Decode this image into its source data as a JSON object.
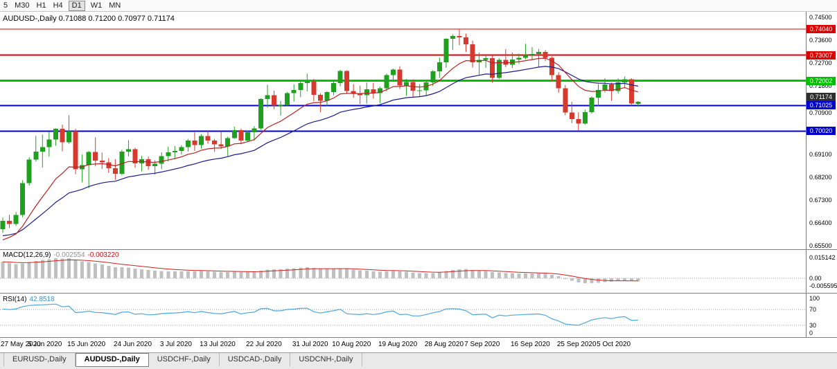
{
  "toolbar": {
    "timeframes": [
      "5",
      "M30",
      "H1",
      "H4",
      "D1",
      "W1",
      "MN"
    ],
    "active": "D1"
  },
  "quote": {
    "symbol": "AUDUSD-,Daily",
    "open": "0.71088",
    "high": "0.71200",
    "low": "0.70977",
    "close": "0.71174"
  },
  "price_axis": {
    "ticks": [
      0.745,
      0.736,
      0.727,
      0.718,
      0.709,
      0.7,
      0.691,
      0.682,
      0.673,
      0.664,
      0.655
    ],
    "current_price": {
      "value": "0.71174",
      "bg": "#2f2f2f"
    }
  },
  "hlines": [
    {
      "price": 0.7404,
      "label": "0.74040",
      "color": "#dd0000",
      "width": 1
    },
    {
      "price": 0.73007,
      "label": "0.73007",
      "color": "#dd0000",
      "width": 2
    },
    {
      "price": 0.72002,
      "label": "0.72002",
      "color": "#00c000",
      "width": 3
    },
    {
      "price": 0.71025,
      "label": "0.71025",
      "color": "#0000cc",
      "width": 2
    },
    {
      "price": 0.7002,
      "label": "0.70020",
      "color": "#0000cc",
      "width": 2
    }
  ],
  "indicators": {
    "macd": {
      "name": "MACD(12,26,9)",
      "main_value": "-0.002554",
      "signal_value": "-0.003220",
      "axis_labels": [
        "0.015142",
        "0.00",
        "-0.005595"
      ],
      "histogram_color": "#c0c0c0",
      "signal_color": "#cc2020"
    },
    "rsi": {
      "name": "RSI(14)",
      "value": "42.8518",
      "axis_labels": [
        "100",
        "70",
        "30",
        "0"
      ],
      "levels": [
        70,
        30
      ],
      "line_color": "#4da6d9"
    }
  },
  "tabs": [
    "EURUSD-,Daily",
    "AUDUSD-,Daily",
    "USDCHF-,Daily",
    "USDCAD-,Daily",
    "USDCNH-,Daily"
  ],
  "active_tab": "AUDUSD-,Daily",
  "chart_data": {
    "type": "candlestick",
    "symbol": "AUDUSD",
    "timeframe": "Daily",
    "ylim": [
      0.655,
      0.745
    ],
    "up_color": "#1fa11f",
    "down_color": "#d63a2f",
    "ma_fast_color": "#bb2222",
    "ma_slow_color": "#1a1a8c",
    "x_labels": [
      {
        "text": "27 May 2020",
        "i": 0
      },
      {
        "text": "5 Jun 2020",
        "i": 7
      },
      {
        "text": "15 Jun 2020",
        "i": 13
      },
      {
        "text": "24 Jun 2020",
        "i": 20
      },
      {
        "text": "3 Jul 2020",
        "i": 27
      },
      {
        "text": "13 Jul 2020",
        "i": 33
      },
      {
        "text": "22 Jul 2020",
        "i": 40
      },
      {
        "text": "31 Jul 2020",
        "i": 47
      },
      {
        "text": "10 Aug 2020",
        "i": 53
      },
      {
        "text": "19 Aug 2020",
        "i": 60
      },
      {
        "text": "28 Aug 2020",
        "i": 67
      },
      {
        "text": "7 Sep 2020",
        "i": 73
      },
      {
        "text": "16 Sep 2020",
        "i": 80
      },
      {
        "text": "25 Sep 2020",
        "i": 87
      },
      {
        "text": "5 Oct 2020",
        "i": 93
      }
    ],
    "ohlc": [
      [
        0.6616,
        0.6661,
        0.6601,
        0.6648
      ],
      [
        0.6648,
        0.6672,
        0.662,
        0.6636
      ],
      [
        0.6636,
        0.6683,
        0.6628,
        0.6671
      ],
      [
        0.6671,
        0.6808,
        0.6662,
        0.6797
      ],
      [
        0.6797,
        0.6899,
        0.6787,
        0.689
      ],
      [
        0.689,
        0.6983,
        0.6882,
        0.6921
      ],
      [
        0.6921,
        0.6988,
        0.6858,
        0.6939
      ],
      [
        0.6939,
        0.6998,
        0.6901,
        0.6969
      ],
      [
        0.6969,
        0.7013,
        0.6944,
        0.7011
      ],
      [
        0.7011,
        0.7027,
        0.6922,
        0.6958
      ],
      [
        0.6958,
        0.7064,
        0.6952,
        0.7001
      ],
      [
        0.7001,
        0.7011,
        0.6832,
        0.6851
      ],
      [
        0.6851,
        0.691,
        0.68,
        0.6868
      ],
      [
        0.6868,
        0.6923,
        0.6777,
        0.6919
      ],
      [
        0.6919,
        0.6977,
        0.6863,
        0.6885
      ],
      [
        0.6885,
        0.6917,
        0.6852,
        0.6879
      ],
      [
        0.6879,
        0.6895,
        0.6837,
        0.6856
      ],
      [
        0.6856,
        0.6891,
        0.681,
        0.6833
      ],
      [
        0.6833,
        0.6928,
        0.6828,
        0.6921
      ],
      [
        0.6921,
        0.6966,
        0.6902,
        0.6931
      ],
      [
        0.6931,
        0.6936,
        0.6857,
        0.6874
      ],
      [
        0.6874,
        0.6904,
        0.6843,
        0.6891
      ],
      [
        0.6891,
        0.6901,
        0.6849,
        0.6864
      ],
      [
        0.6864,
        0.6887,
        0.683,
        0.6873
      ],
      [
        0.6873,
        0.6918,
        0.6852,
        0.6903
      ],
      [
        0.6903,
        0.6941,
        0.6882,
        0.6918
      ],
      [
        0.6918,
        0.6943,
        0.689,
        0.6924
      ],
      [
        0.6924,
        0.6946,
        0.691,
        0.6938
      ],
      [
        0.6938,
        0.6971,
        0.6921,
        0.6965
      ],
      [
        0.6965,
        0.6997,
        0.6924,
        0.6947
      ],
      [
        0.6947,
        0.6989,
        0.6932,
        0.6982
      ],
      [
        0.6982,
        0.7001,
        0.6952,
        0.6964
      ],
      [
        0.6964,
        0.6971,
        0.692,
        0.6949
      ],
      [
        0.6949,
        0.7001,
        0.6932,
        0.6942
      ],
      [
        0.6942,
        0.698,
        0.6903,
        0.6974
      ],
      [
        0.6974,
        0.7019,
        0.6971,
        0.7005
      ],
      [
        0.7005,
        0.7011,
        0.695,
        0.6964
      ],
      [
        0.6964,
        0.7004,
        0.6959,
        0.6997
      ],
      [
        0.6997,
        0.7021,
        0.6965,
        0.7012
      ],
      [
        0.7012,
        0.7131,
        0.7007,
        0.7128
      ],
      [
        0.7128,
        0.7184,
        0.7094,
        0.7143
      ],
      [
        0.7143,
        0.7161,
        0.7088,
        0.7102
      ],
      [
        0.7102,
        0.7121,
        0.7063,
        0.7104
      ],
      [
        0.7104,
        0.7156,
        0.7101,
        0.7151
      ],
      [
        0.7151,
        0.7186,
        0.7118,
        0.7163
      ],
      [
        0.7163,
        0.7198,
        0.7135,
        0.7191
      ],
      [
        0.7191,
        0.7228,
        0.7158,
        0.7197
      ],
      [
        0.7197,
        0.7207,
        0.7119,
        0.7144
      ],
      [
        0.7144,
        0.715,
        0.7076,
        0.7122
      ],
      [
        0.7122,
        0.7159,
        0.7101,
        0.7156
      ],
      [
        0.7156,
        0.7199,
        0.7143,
        0.7191
      ],
      [
        0.7191,
        0.7243,
        0.7178,
        0.7238
      ],
      [
        0.7238,
        0.7241,
        0.7148,
        0.7159
      ],
      [
        0.7159,
        0.7187,
        0.7133,
        0.715
      ],
      [
        0.715,
        0.7181,
        0.7108,
        0.7143
      ],
      [
        0.7143,
        0.7193,
        0.711,
        0.7166
      ],
      [
        0.7166,
        0.7192,
        0.713,
        0.7151
      ],
      [
        0.7151,
        0.7177,
        0.7112,
        0.7171
      ],
      [
        0.7171,
        0.7228,
        0.7158,
        0.7222
      ],
      [
        0.7222,
        0.7248,
        0.72,
        0.7244
      ],
      [
        0.7244,
        0.7257,
        0.7167,
        0.7181
      ],
      [
        0.7181,
        0.7207,
        0.7141,
        0.7195
      ],
      [
        0.7195,
        0.7205,
        0.7135,
        0.7161
      ],
      [
        0.7161,
        0.7186,
        0.7138,
        0.7162
      ],
      [
        0.7162,
        0.72,
        0.7142,
        0.7193
      ],
      [
        0.7193,
        0.7242,
        0.7179,
        0.7237
      ],
      [
        0.7237,
        0.7291,
        0.7211,
        0.7273
      ],
      [
        0.7273,
        0.7367,
        0.7251,
        0.7365
      ],
      [
        0.7365,
        0.7383,
        0.7321,
        0.7377
      ],
      [
        0.7377,
        0.7404,
        0.734,
        0.7371
      ],
      [
        0.7371,
        0.7386,
        0.7314,
        0.7344
      ],
      [
        0.7344,
        0.7358,
        0.7252,
        0.7273
      ],
      [
        0.7273,
        0.7311,
        0.7221,
        0.7282
      ],
      [
        0.7282,
        0.7298,
        0.7251,
        0.7289
      ],
      [
        0.7289,
        0.73,
        0.7192,
        0.7211
      ],
      [
        0.7211,
        0.7289,
        0.7207,
        0.7282
      ],
      [
        0.7282,
        0.7325,
        0.7254,
        0.7263
      ],
      [
        0.7263,
        0.7311,
        0.725,
        0.7284
      ],
      [
        0.7284,
        0.7307,
        0.7266,
        0.729
      ],
      [
        0.729,
        0.7346,
        0.7284,
        0.7302
      ],
      [
        0.7302,
        0.7332,
        0.7283,
        0.7306
      ],
      [
        0.7306,
        0.7325,
        0.7255,
        0.7313
      ],
      [
        0.7313,
        0.7321,
        0.7277,
        0.7291
      ],
      [
        0.7291,
        0.7296,
        0.7199,
        0.7222
      ],
      [
        0.7222,
        0.7234,
        0.7153,
        0.7171
      ],
      [
        0.7171,
        0.7183,
        0.7064,
        0.7075
      ],
      [
        0.7075,
        0.7117,
        0.7033,
        0.7049
      ],
      [
        0.7049,
        0.7076,
        0.7005,
        0.7032
      ],
      [
        0.7032,
        0.7086,
        0.7028,
        0.7076
      ],
      [
        0.7076,
        0.7138,
        0.707,
        0.7133
      ],
      [
        0.7133,
        0.7186,
        0.7101,
        0.7163
      ],
      [
        0.7163,
        0.721,
        0.7154,
        0.7186
      ],
      [
        0.7186,
        0.7193,
        0.7121,
        0.716
      ],
      [
        0.716,
        0.7209,
        0.715,
        0.7193
      ],
      [
        0.7193,
        0.7217,
        0.717,
        0.7206
      ],
      [
        0.7206,
        0.721,
        0.7102,
        0.711
      ],
      [
        0.71088,
        0.712,
        0.70977,
        0.71174
      ]
    ]
  }
}
